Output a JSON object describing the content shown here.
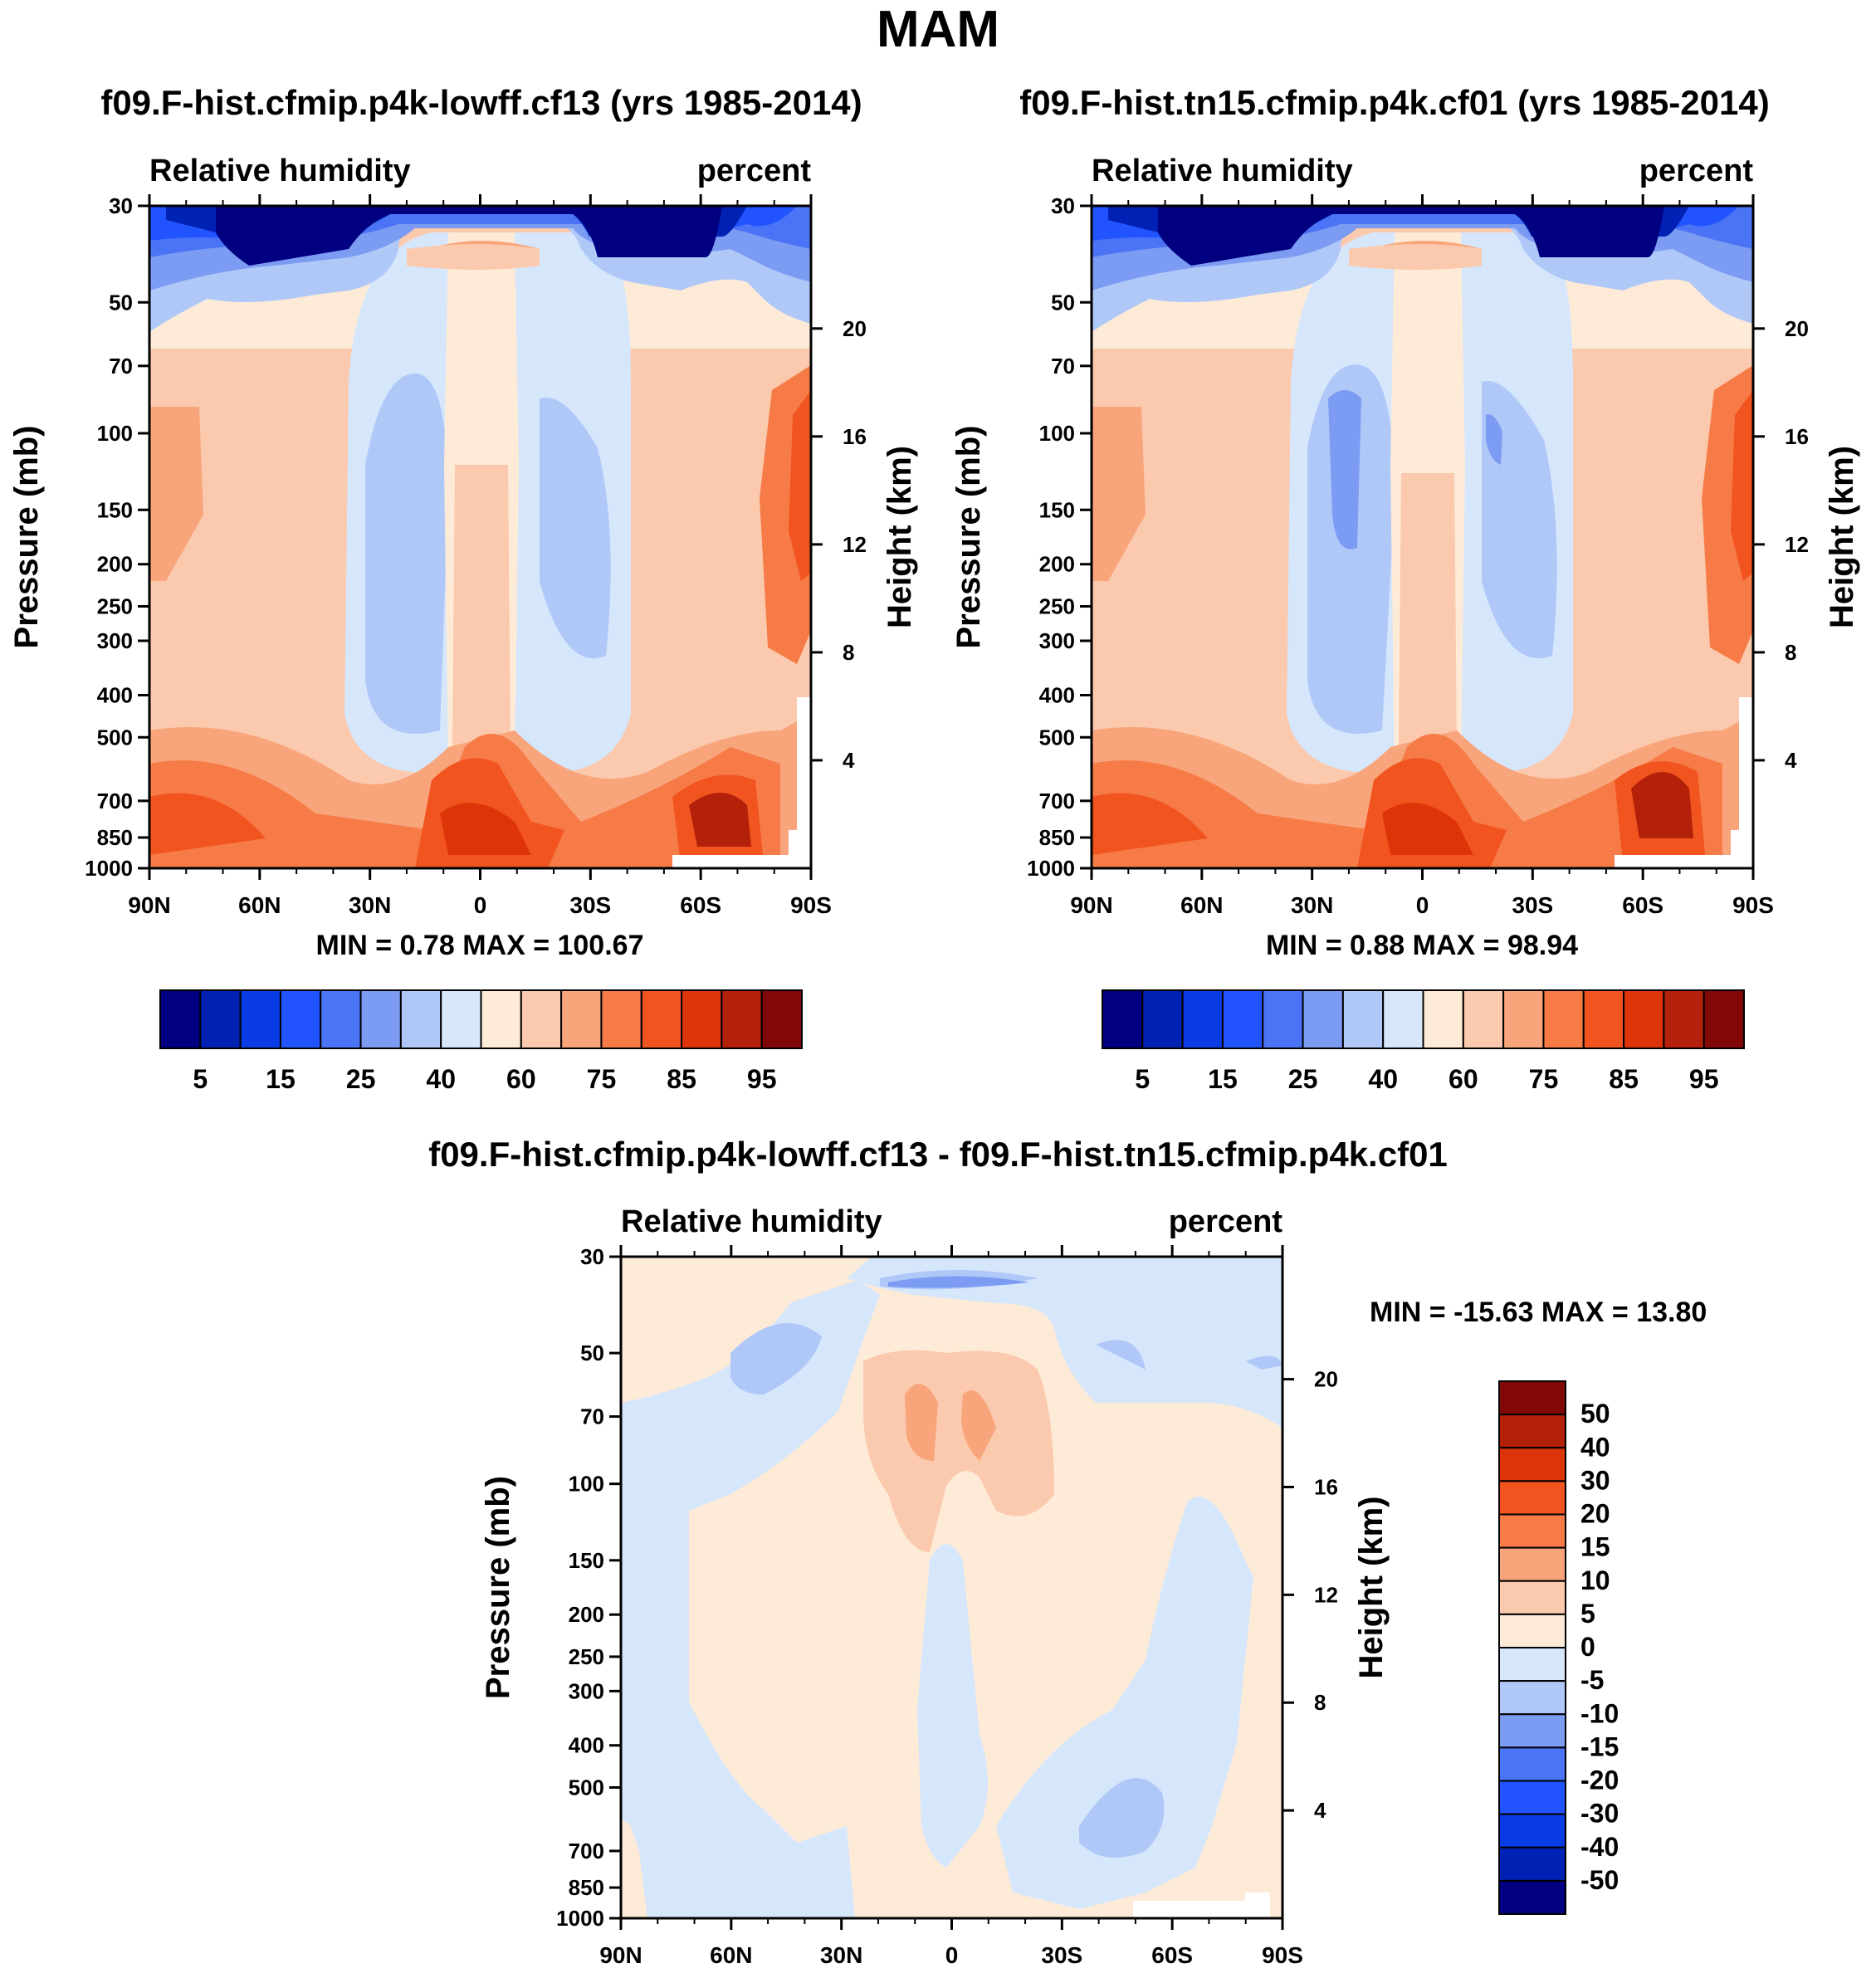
{
  "figure": {
    "title": "MAM"
  },
  "panels": [
    {
      "title": "f09.F-hist.cfmip.p4k-lowff.cf13 (yrs 1985-2014)",
      "left_label": "Relative humidity",
      "right_label": "percent",
      "stats": "MIN =   0.78  MAX = 100.67"
    },
    {
      "title": "f09.F-hist.tn15.cfmip.p4k.cf01 (yrs 1985-2014)",
      "left_label": "Relative humidity",
      "right_label": "percent",
      "stats": "MIN =   0.88  MAX =  98.94"
    },
    {
      "title": "f09.F-hist.cfmip.p4k-lowff.cf13 - f09.F-hist.tn15.cfmip.p4k.cf01",
      "left_label": "Relative humidity",
      "right_label": "percent",
      "stats": "MIN = -15.63  MAX =  13.80"
    }
  ],
  "colorbars": {
    "rh_colors": [
      "#000080",
      "#0022b4",
      "#0a3ce6",
      "#2154ff",
      "#4a74f5",
      "#7c9bf2",
      "#b0c8f8",
      "#d6e6fb",
      "#fdebd8",
      "#fbc9ad",
      "#f8a57c",
      "#f67b47",
      "#f2541f",
      "#dd3409",
      "#b3210a",
      "#820808"
    ],
    "rh_labels": [
      "5",
      "15",
      "25",
      "40",
      "60",
      "75",
      "85",
      "95"
    ],
    "diff_colors": [
      "#820808",
      "#b3210a",
      "#dd3409",
      "#f2541f",
      "#f67b47",
      "#f8a57c",
      "#fbc9ad",
      "#fdebd8",
      "#d6e6fb",
      "#b0c8f8",
      "#7c9bf2",
      "#4a74f5",
      "#2154ff",
      "#0a3ce6",
      "#0022b4",
      "#000080"
    ],
    "diff_labels": [
      "50",
      "40",
      "30",
      "20",
      "15",
      "10",
      "5",
      "0",
      "-5",
      "-10",
      "-15",
      "-20",
      "-30",
      "-40",
      "-50"
    ]
  },
  "chart_data": [
    {
      "type": "heatmap",
      "title": "f09.F-hist.cfmip.p4k-lowff.cf13 (yrs 1985-2014)",
      "variable": "Relative humidity",
      "units": "percent",
      "xlabel": "",
      "ylabel": "Pressure (mb)",
      "y2label": "Height (km)",
      "x_ticks": [
        "90N",
        "60N",
        "30N",
        "0",
        "30S",
        "60S",
        "90S"
      ],
      "y_ticks": [
        "30",
        "50",
        "70",
        "100",
        "150",
        "200",
        "250",
        "300",
        "400",
        "500",
        "700",
        "850",
        "1000"
      ],
      "y2_ticks": [
        "20",
        "16",
        "12",
        "8",
        "4"
      ],
      "ylim": [
        1000,
        30
      ],
      "y_scale": "log",
      "min": 0.78,
      "max": 100.67,
      "levels": [
        5,
        10,
        15,
        20,
        25,
        30,
        40,
        50,
        60,
        70,
        75,
        80,
        85,
        90,
        95
      ]
    },
    {
      "type": "heatmap",
      "title": "f09.F-hist.tn15.cfmip.p4k.cf01 (yrs 1985-2014)",
      "variable": "Relative humidity",
      "units": "percent",
      "xlabel": "",
      "ylabel": "Pressure (mb)",
      "y2label": "Height (km)",
      "x_ticks": [
        "90N",
        "60N",
        "30N",
        "0",
        "30S",
        "60S",
        "90S"
      ],
      "y_ticks": [
        "30",
        "50",
        "70",
        "100",
        "150",
        "200",
        "250",
        "300",
        "400",
        "500",
        "700",
        "850",
        "1000"
      ],
      "y2_ticks": [
        "20",
        "16",
        "12",
        "8",
        "4"
      ],
      "ylim": [
        1000,
        30
      ],
      "y_scale": "log",
      "min": 0.88,
      "max": 98.94,
      "levels": [
        5,
        10,
        15,
        20,
        25,
        30,
        40,
        50,
        60,
        70,
        75,
        80,
        85,
        90,
        95
      ]
    },
    {
      "type": "heatmap",
      "title": "f09.F-hist.cfmip.p4k-lowff.cf13 - f09.F-hist.tn15.cfmip.p4k.cf01",
      "variable": "Relative humidity",
      "units": "percent",
      "xlabel": "",
      "ylabel": "Pressure (mb)",
      "y2label": "Height (km)",
      "x_ticks": [
        "90N",
        "60N",
        "30N",
        "0",
        "30S",
        "60S",
        "90S"
      ],
      "y_ticks": [
        "30",
        "50",
        "70",
        "100",
        "150",
        "200",
        "250",
        "300",
        "400",
        "500",
        "700",
        "850",
        "1000"
      ],
      "y2_ticks": [
        "20",
        "16",
        "12",
        "8",
        "4"
      ],
      "ylim": [
        1000,
        30
      ],
      "y_scale": "log",
      "min": -15.63,
      "max": 13.8,
      "levels": [
        -50,
        -40,
        -30,
        -20,
        -15,
        -10,
        -5,
        0,
        5,
        10,
        15,
        20,
        30,
        40,
        50
      ]
    }
  ],
  "axes": {
    "ylabel": "Pressure (mb)",
    "y2label": "Height (km)"
  }
}
